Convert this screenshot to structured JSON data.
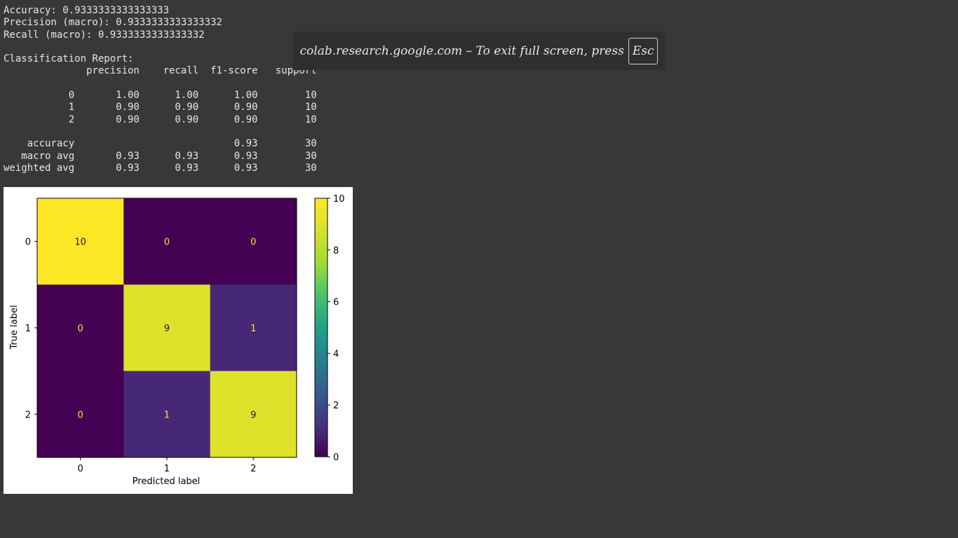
{
  "output": {
    "lines": [
      "Accuracy: 0.9333333333333333",
      "Precision (macro): 0.9333333333333332",
      "Recall (macro): 0.9333333333333332",
      "",
      "Classification Report:",
      "              precision    recall  f1-score   support",
      "",
      "           0       1.00      1.00      1.00        10",
      "           1       0.90      0.90      0.90        10",
      "           2       0.90      0.90      0.90        10",
      "",
      "    accuracy                           0.93        30",
      "   macro avg       0.93      0.93      0.93        30",
      "weighted avg       0.93      0.93      0.93        30"
    ]
  },
  "fullscreen_notice": {
    "text": "colab.research.google.com – To exit full screen, press",
    "key": "Esc"
  },
  "chart_data": {
    "type": "heatmap",
    "title": "",
    "xlabel": "Predicted label",
    "ylabel": "True label",
    "x_categories": [
      "0",
      "1",
      "2"
    ],
    "y_categories": [
      "0",
      "1",
      "2"
    ],
    "values": [
      [
        10,
        0,
        0
      ],
      [
        0,
        9,
        1
      ],
      [
        0,
        1,
        9
      ]
    ],
    "colormap": "viridis",
    "colorbar": {
      "min": 0,
      "max": 10,
      "ticks": [
        "0",
        "2",
        "4",
        "6",
        "8",
        "10"
      ]
    },
    "low_value_text_color": "#fde725",
    "high_value_text_color": "#440154"
  }
}
